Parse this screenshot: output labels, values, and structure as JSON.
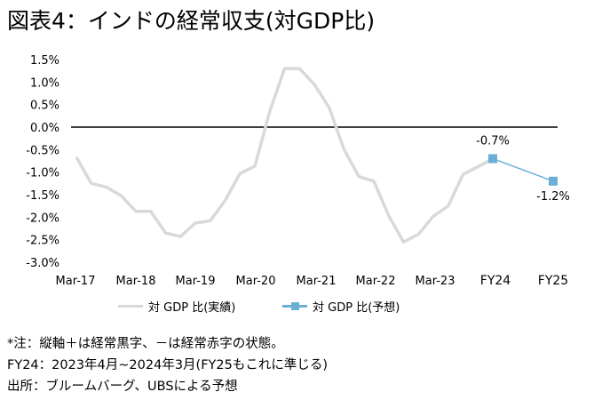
{
  "title": "図表4：インドの経常収支(対GDP比)",
  "chart_data": {
    "type": "line",
    "yticks": [
      "1.5%",
      "1.0%",
      "0.5%",
      "0.0%",
      "-0.5%",
      "-1.0%",
      "-1.5%",
      "-2.0%",
      "-2.5%",
      "-3.0%"
    ],
    "ylim": [
      -3.0,
      1.5
    ],
    "xticks": [
      "Mar-17",
      "Mar-18",
      "Mar-19",
      "Mar-20",
      "Mar-21",
      "Mar-22",
      "Mar-23",
      "FY24",
      "FY25"
    ],
    "series": [
      {
        "name": "対 GDP 比(実績)",
        "color": "#d9d9d9",
        "values": [
          -0.67,
          -1.25,
          -1.33,
          -1.52,
          -1.87,
          -1.87,
          -2.35,
          -2.43,
          -2.13,
          -2.08,
          -1.63,
          -1.03,
          -0.87,
          0.35,
          1.3,
          1.3,
          0.95,
          0.43,
          -0.5,
          -1.1,
          -1.2,
          -1.97,
          -2.55,
          -2.38,
          -1.98,
          -1.75,
          -1.05,
          -0.88,
          -0.7
        ]
      },
      {
        "name": "対 GDP 比(予想)",
        "color": "#6baed6",
        "values": [
          -0.7,
          -1.2
        ],
        "labels": [
          "-0.7%",
          "-1.2%"
        ]
      }
    ]
  },
  "legend": {
    "actual": "対 GDP 比(実績)",
    "forecast": "対 GDP 比(予想)"
  },
  "notes": [
    "*注：縦軸＋は経常黒字、－は経常赤字の状態。",
    "FY24：2023年4月~2024年3月(FY25もこれに準じる)",
    "出所：ブルームバーグ、UBSによる予想"
  ]
}
